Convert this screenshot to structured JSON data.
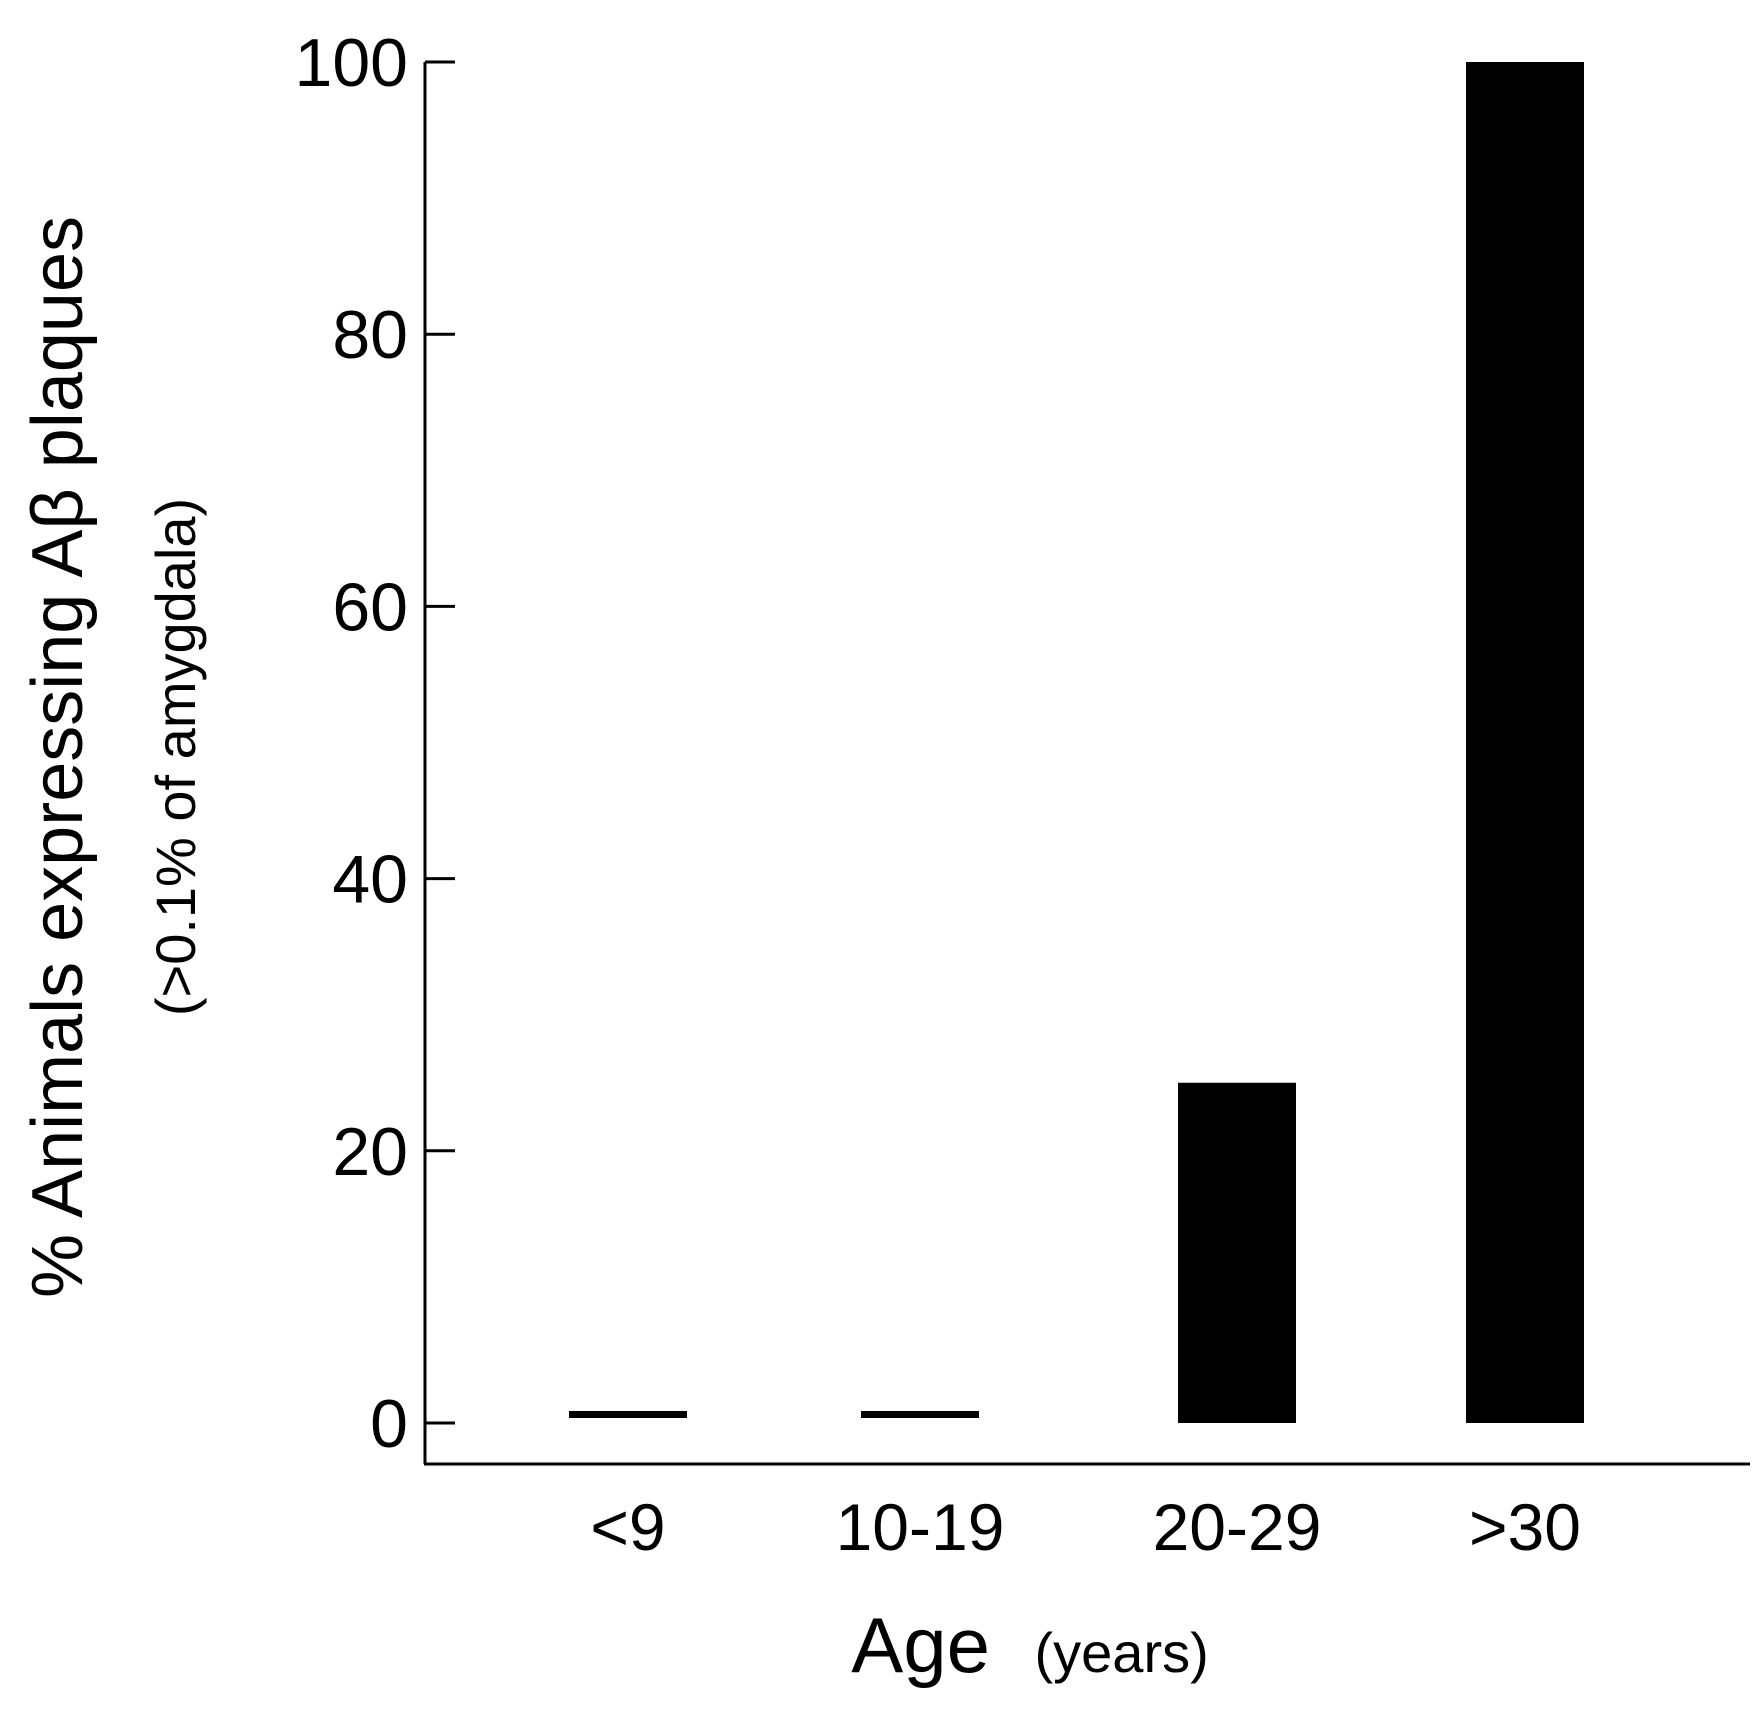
{
  "chart_data": {
    "type": "bar",
    "categories": [
      "<9",
      "10-19",
      "20-29",
      ">30"
    ],
    "values": [
      0,
      0,
      25,
      100
    ],
    "title": "",
    "xlabel": "Age",
    "xlabel_unit": "(years)",
    "ylabel": "% Animals expressing Aβ plaques",
    "ylabel_sub": "(>0.1% of amygdala)",
    "ylim": [
      0,
      100
    ],
    "yticks": [
      0,
      20,
      40,
      60,
      80,
      100
    ],
    "grid": false,
    "bar_color": "#000000"
  }
}
